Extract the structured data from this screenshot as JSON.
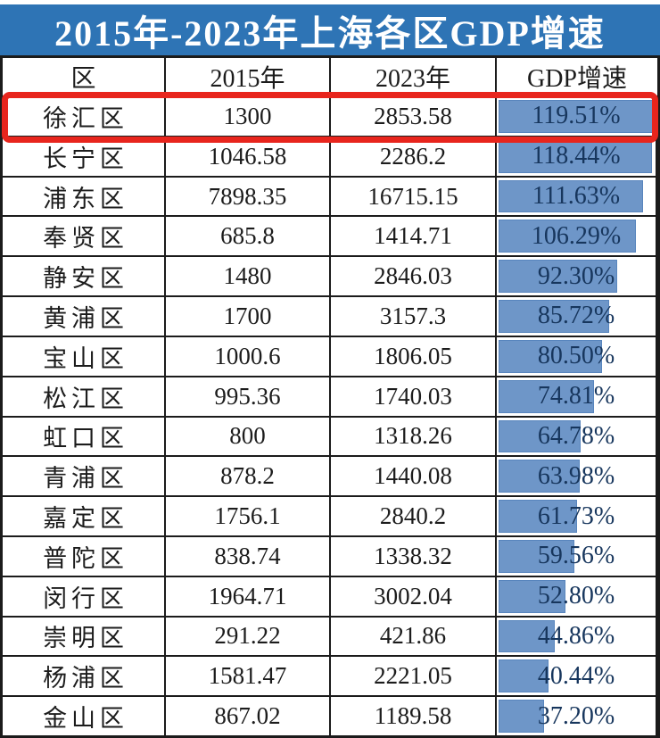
{
  "page_title": "2015年-2023年上海各区GDP增速",
  "table": {
    "headers": [
      "区",
      "2015年",
      "2023年",
      "GDP增速"
    ],
    "bar_scale_max": 119.51,
    "rows": [
      {
        "district": "徐汇区",
        "gdp_2015": "1300",
        "gdp_2023": "2853.58",
        "growth_label": "119.51%",
        "growth_value": 119.51,
        "highlighted": true
      },
      {
        "district": "长宁区",
        "gdp_2015": "1046.58",
        "gdp_2023": "2286.2",
        "growth_label": "118.44%",
        "growth_value": 118.44,
        "highlighted": false
      },
      {
        "district": "浦东区",
        "gdp_2015": "7898.35",
        "gdp_2023": "16715.15",
        "growth_label": "111.63%",
        "growth_value": 111.63,
        "highlighted": false
      },
      {
        "district": "奉贤区",
        "gdp_2015": "685.8",
        "gdp_2023": "1414.71",
        "growth_label": "106.29%",
        "growth_value": 106.29,
        "highlighted": false
      },
      {
        "district": "静安区",
        "gdp_2015": "1480",
        "gdp_2023": "2846.03",
        "growth_label": "92.30%",
        "growth_value": 92.3,
        "highlighted": false
      },
      {
        "district": "黄浦区",
        "gdp_2015": "1700",
        "gdp_2023": "3157.3",
        "growth_label": "85.72%",
        "growth_value": 85.72,
        "highlighted": false
      },
      {
        "district": "宝山区",
        "gdp_2015": "1000.6",
        "gdp_2023": "1806.05",
        "growth_label": "80.50%",
        "growth_value": 80.5,
        "highlighted": false
      },
      {
        "district": "松江区",
        "gdp_2015": "995.36",
        "gdp_2023": "1740.03",
        "growth_label": "74.81%",
        "growth_value": 74.81,
        "highlighted": false
      },
      {
        "district": "虹口区",
        "gdp_2015": "800",
        "gdp_2023": "1318.26",
        "growth_label": "64.78%",
        "growth_value": 64.78,
        "highlighted": false
      },
      {
        "district": "青浦区",
        "gdp_2015": "878.2",
        "gdp_2023": "1440.08",
        "growth_label": "63.98%",
        "growth_value": 63.98,
        "highlighted": false
      },
      {
        "district": "嘉定区",
        "gdp_2015": "1756.1",
        "gdp_2023": "2840.2",
        "growth_label": "61.73%",
        "growth_value": 61.73,
        "highlighted": false
      },
      {
        "district": "普陀区",
        "gdp_2015": "838.74",
        "gdp_2023": "1338.32",
        "growth_label": "59.56%",
        "growth_value": 59.56,
        "highlighted": false
      },
      {
        "district": "闵行区",
        "gdp_2015": "1964.71",
        "gdp_2023": "3002.04",
        "growth_label": "52.80%",
        "growth_value": 52.8,
        "highlighted": false
      },
      {
        "district": "崇明区",
        "gdp_2015": "291.22",
        "gdp_2023": "421.86",
        "growth_label": "44.86%",
        "growth_value": 44.86,
        "highlighted": false
      },
      {
        "district": "杨浦区",
        "gdp_2015": "1581.47",
        "gdp_2023": "2221.05",
        "growth_label": "40.44%",
        "growth_value": 40.44,
        "highlighted": false
      },
      {
        "district": "金山区",
        "gdp_2015": "867.02",
        "gdp_2023": "1189.58",
        "growth_label": "37.20%",
        "growth_value": 37.2,
        "highlighted": false
      }
    ]
  },
  "colors": {
    "title_bg": "#2e74b5",
    "title_text": "#ffffff",
    "bar_fill": "#6e96c8",
    "bar_border": "#5885bd",
    "growth_text": "#17365d",
    "grid_line": "#1b1b1b",
    "highlight_red": "#e8251d",
    "body_text": "#1c1c1c"
  },
  "chart_data": {
    "type": "table",
    "title": "2015年-2023年上海各区GDP增速",
    "columns": [
      "区",
      "2015年",
      "2023年",
      "GDP增速"
    ],
    "rows": [
      [
        "徐汇区",
        1300,
        2853.58,
        "119.51%"
      ],
      [
        "长宁区",
        1046.58,
        2286.2,
        "118.44%"
      ],
      [
        "浦东区",
        7898.35,
        16715.15,
        "111.63%"
      ],
      [
        "奉贤区",
        685.8,
        1414.71,
        "106.29%"
      ],
      [
        "静安区",
        1480,
        2846.03,
        "92.30%"
      ],
      [
        "黄浦区",
        1700,
        3157.3,
        "85.72%"
      ],
      [
        "宝山区",
        1000.6,
        1806.05,
        "80.50%"
      ],
      [
        "松江区",
        995.36,
        1740.03,
        "74.81%"
      ],
      [
        "虹口区",
        800,
        1318.26,
        "64.78%"
      ],
      [
        "青浦区",
        878.2,
        1440.08,
        "63.98%"
      ],
      [
        "嘉定区",
        1756.1,
        2840.2,
        "61.73%"
      ],
      [
        "普陀区",
        838.74,
        1338.32,
        "59.56%"
      ],
      [
        "闵行区",
        1964.71,
        3002.04,
        "52.80%"
      ],
      [
        "崇明区",
        291.22,
        421.86,
        "44.86%"
      ],
      [
        "杨浦区",
        1581.47,
        2221.05,
        "40.44%"
      ],
      [
        "金山区",
        867.02,
        1189.58,
        "37.20%"
      ]
    ],
    "bar_column": "GDP增速",
    "bar_values": [
      119.51,
      118.44,
      111.63,
      106.29,
      92.3,
      85.72,
      80.5,
      74.81,
      64.78,
      63.98,
      61.73,
      59.56,
      52.8,
      44.86,
      40.44,
      37.2
    ],
    "bar_scale": [
      0,
      119.51
    ],
    "highlighted_row": "徐汇区"
  }
}
